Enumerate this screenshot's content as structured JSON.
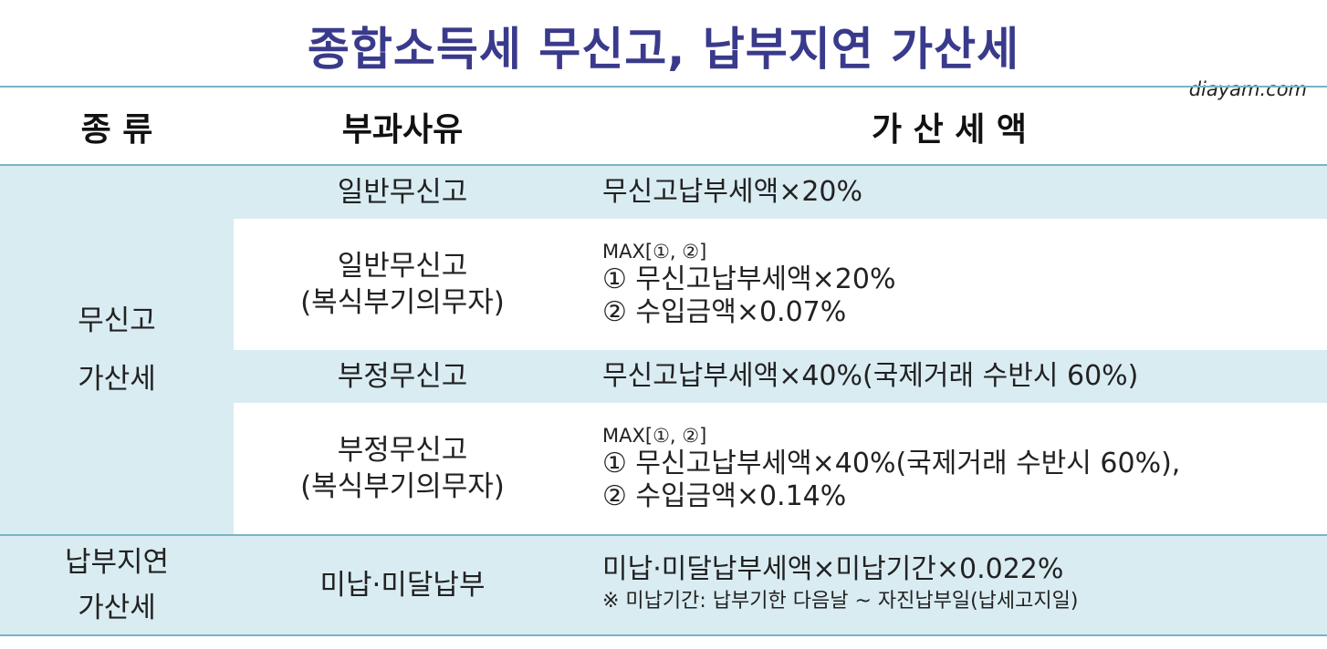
{
  "title": "종합소득세 무신고, 납부지연 가산세",
  "watermark": "diayam.com",
  "header": {
    "type": "종 류",
    "reason": "부과사유",
    "amount": "가 산 세 액"
  },
  "sections": [
    {
      "category_lines": [
        "무신고",
        "가산세"
      ],
      "rows": [
        {
          "reason_lines": [
            "일반무신고"
          ],
          "amount_max": "",
          "amount_lines": [
            "무신고납부세액×20%"
          ],
          "note": ""
        },
        {
          "reason_lines": [
            "일반무신고",
            "(복식부기의무자)"
          ],
          "amount_max": "MAX[①, ②]",
          "amount_lines": [
            "① 무신고납부세액×20%",
            "② 수입금액×0.07%"
          ],
          "note": ""
        },
        {
          "reason_lines": [
            "부정무신고"
          ],
          "amount_max": "",
          "amount_lines": [
            "무신고납부세액×40%(국제거래  수반시  60%)"
          ],
          "note": ""
        },
        {
          "reason_lines": [
            "부정무신고",
            "(복식부기의무자)"
          ],
          "amount_max": "MAX[①, ②]",
          "amount_lines": [
            "① 무신고납부세액×40%(국제거래  수반시  60%),",
            "② 수입금액×0.14%"
          ],
          "note": ""
        }
      ]
    },
    {
      "category_lines": [
        "납부지연",
        "가산세"
      ],
      "rows": [
        {
          "reason_lines": [
            "미납·미달납부"
          ],
          "amount_max": "",
          "amount_lines": [
            "미납·미달납부세액×미납기간×0.022%"
          ],
          "note": "※ 미납기간: 납부기한 다음날 ~ 자진납부일(납세고지일)"
        }
      ]
    }
  ],
  "colors": {
    "title": "#3a3a8c",
    "band": "#d9ecf2",
    "rule": "#7ab3c6"
  }
}
